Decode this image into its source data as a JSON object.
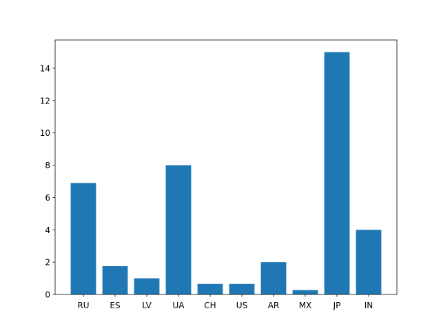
{
  "chart_data": {
    "type": "bar",
    "categories": [
      "RU",
      "ES",
      "LV",
      "UA",
      "CH",
      "US",
      "AR",
      "MX",
      "JP",
      "IN"
    ],
    "values": [
      6.9,
      1.75,
      1.0,
      8.0,
      0.65,
      0.65,
      2.0,
      0.27,
      15.0,
      4.0
    ],
    "ylim": [
      0,
      15.75
    ],
    "yticks": [
      0,
      2,
      4,
      6,
      8,
      10,
      12,
      14
    ],
    "title": "",
    "xlabel": "",
    "ylabel": "",
    "grid": false,
    "bar_color": "#1f77b4"
  }
}
